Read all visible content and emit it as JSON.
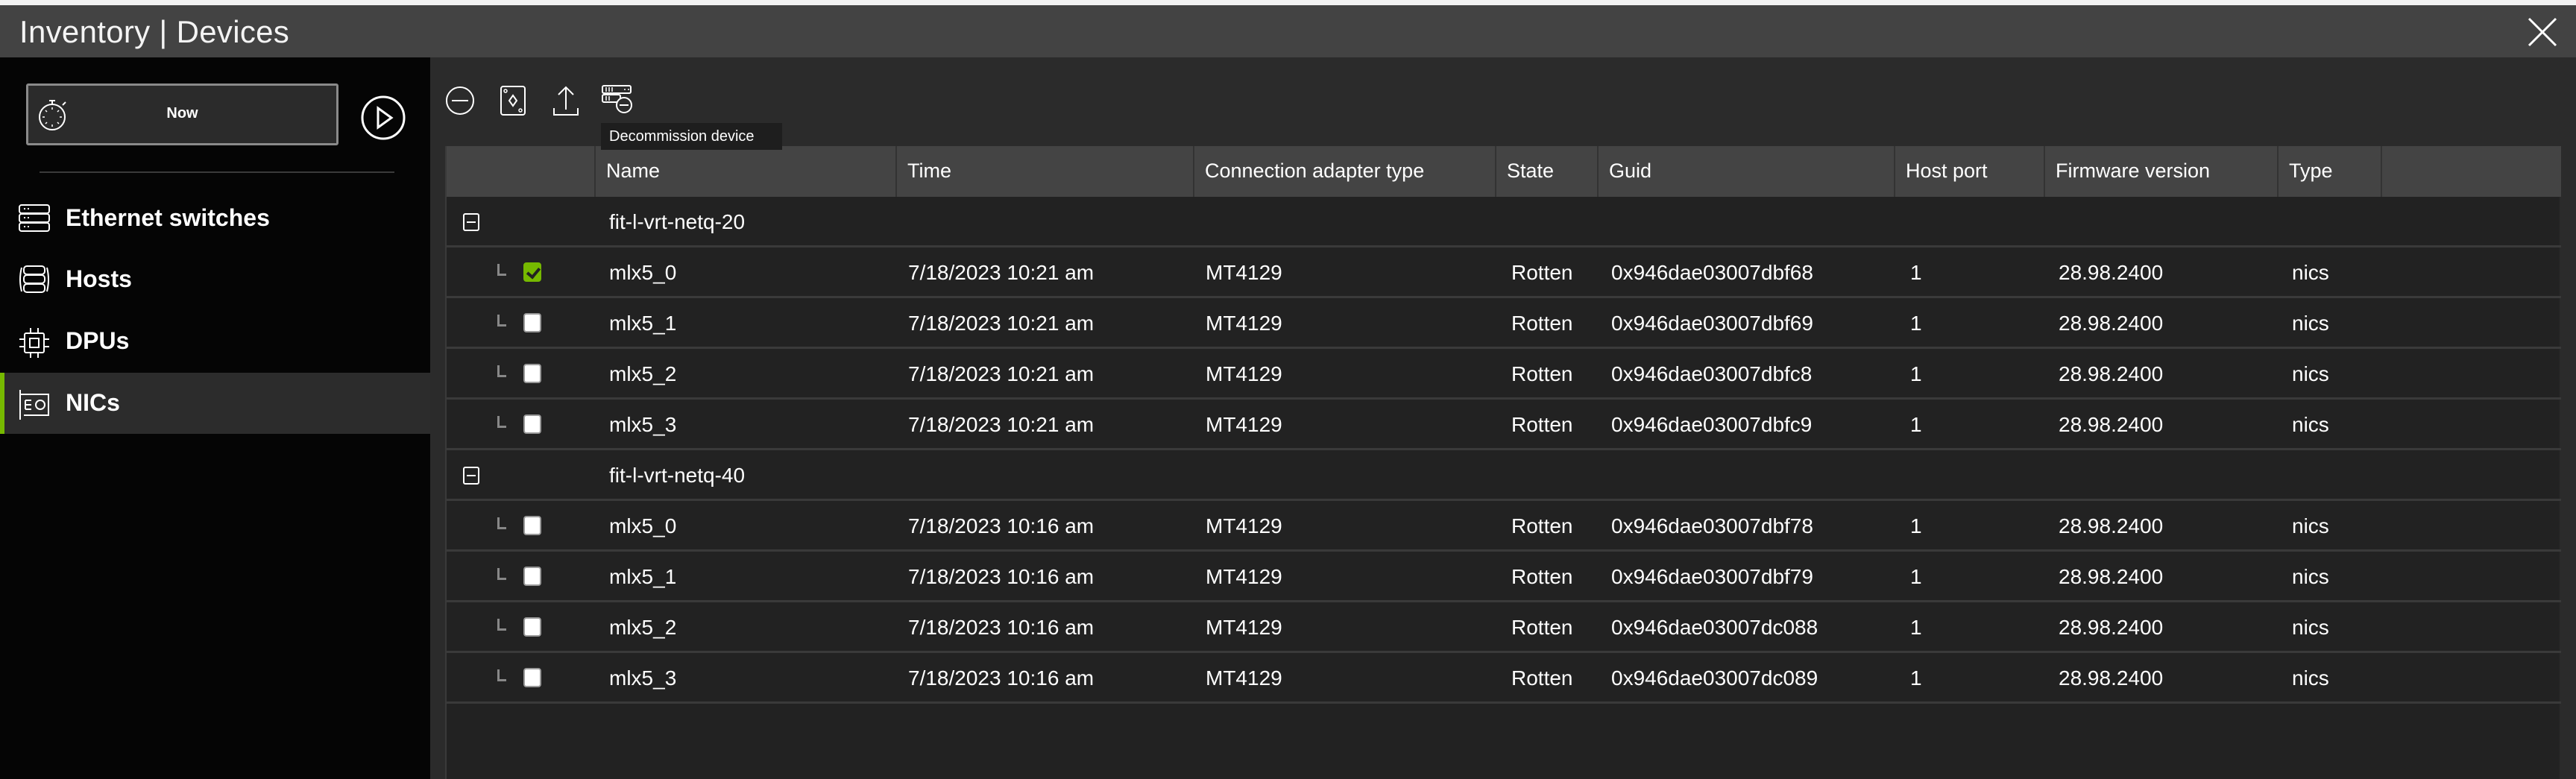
{
  "window": {
    "title": "Inventory | Devices"
  },
  "sidebar": {
    "time_button": "Now",
    "items": [
      {
        "label": "Ethernet switches",
        "icon": "switch-icon",
        "active": false
      },
      {
        "label": "Hosts",
        "icon": "hosts-icon",
        "active": false
      },
      {
        "label": "DPUs",
        "icon": "chip-icon",
        "active": false
      },
      {
        "label": "NICs",
        "icon": "nic-icon",
        "active": true
      }
    ]
  },
  "toolbar": {
    "icons": [
      "collapse-all-icon",
      "card-icon",
      "export-icon",
      "decommission-icon"
    ],
    "tooltip": "Decommission device"
  },
  "colors": {
    "accent": "#76b900",
    "header_bg": "#444444",
    "body_bg": "#222222",
    "sidebar_bg": "#050505"
  },
  "table": {
    "columns": [
      "",
      "Name",
      "Time",
      "Connection adapter type",
      "State",
      "Guid",
      "Host port",
      "Firmware version",
      "Type",
      ""
    ],
    "groups": [
      {
        "name": "fit-l-vrt-netq-20",
        "rows": [
          {
            "checked": true,
            "name": "mlx5_0",
            "time": "7/18/2023 10:21 am",
            "adapter": "MT4129",
            "state": "Rotten",
            "guid": "0x946dae03007dbf68",
            "host_port": "1",
            "firmware": "28.98.2400",
            "type": "nics"
          },
          {
            "checked": false,
            "name": "mlx5_1",
            "time": "7/18/2023 10:21 am",
            "adapter": "MT4129",
            "state": "Rotten",
            "guid": "0x946dae03007dbf69",
            "host_port": "1",
            "firmware": "28.98.2400",
            "type": "nics"
          },
          {
            "checked": false,
            "name": "mlx5_2",
            "time": "7/18/2023 10:21 am",
            "adapter": "MT4129",
            "state": "Rotten",
            "guid": "0x946dae03007dbfc8",
            "host_port": "1",
            "firmware": "28.98.2400",
            "type": "nics"
          },
          {
            "checked": false,
            "name": "mlx5_3",
            "time": "7/18/2023 10:21 am",
            "adapter": "MT4129",
            "state": "Rotten",
            "guid": "0x946dae03007dbfc9",
            "host_port": "1",
            "firmware": "28.98.2400",
            "type": "nics"
          }
        ]
      },
      {
        "name": "fit-l-vrt-netq-40",
        "rows": [
          {
            "checked": false,
            "name": "mlx5_0",
            "time": "7/18/2023 10:16 am",
            "adapter": "MT4129",
            "state": "Rotten",
            "guid": "0x946dae03007dbf78",
            "host_port": "1",
            "firmware": "28.98.2400",
            "type": "nics"
          },
          {
            "checked": false,
            "name": "mlx5_1",
            "time": "7/18/2023 10:16 am",
            "adapter": "MT4129",
            "state": "Rotten",
            "guid": "0x946dae03007dbf79",
            "host_port": "1",
            "firmware": "28.98.2400",
            "type": "nics"
          },
          {
            "checked": false,
            "name": "mlx5_2",
            "time": "7/18/2023 10:16 am",
            "adapter": "MT4129",
            "state": "Rotten",
            "guid": "0x946dae03007dc088",
            "host_port": "1",
            "firmware": "28.98.2400",
            "type": "nics"
          },
          {
            "checked": false,
            "name": "mlx5_3",
            "time": "7/18/2023 10:16 am",
            "adapter": "MT4129",
            "state": "Rotten",
            "guid": "0x946dae03007dc089",
            "host_port": "1",
            "firmware": "28.98.2400",
            "type": "nics"
          }
        ]
      }
    ]
  }
}
